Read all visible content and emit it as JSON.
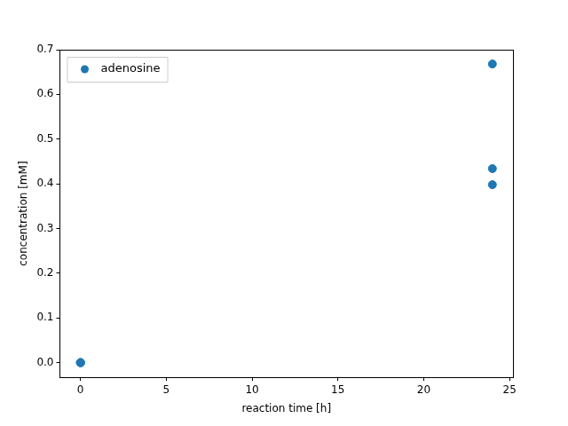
{
  "chart_data": {
    "type": "scatter",
    "x_label": "reaction time [h]",
    "y_label": "concentration [mM]",
    "series": [
      {
        "name": "adenosine",
        "color": "#1f77b4",
        "marker": "circle",
        "x": [
          0,
          0,
          0,
          24,
          24,
          24
        ],
        "values": [
          0,
          0,
          0,
          0.668,
          0.434,
          0.398
        ]
      }
    ],
    "xlim": [
      -1.2,
      25.2
    ],
    "xticks": [
      0,
      5,
      10,
      15,
      20,
      25
    ],
    "ylim": [
      -0.033,
      0.7
    ],
    "yticks": [
      {
        "value": 0,
        "label": "0.0"
      },
      {
        "value": 0.1,
        "label": "0.1"
      },
      {
        "value": 0.2,
        "label": "0.2"
      },
      {
        "value": 0.3,
        "label": "0.3"
      },
      {
        "value": 0.4,
        "label": "0.4"
      },
      {
        "value": 0.5,
        "label": "0.5"
      },
      {
        "value": 0.6,
        "label": "0.6"
      },
      {
        "value": 0.7,
        "label": "0.7"
      }
    ],
    "grid": false,
    "legend": "upper left"
  }
}
